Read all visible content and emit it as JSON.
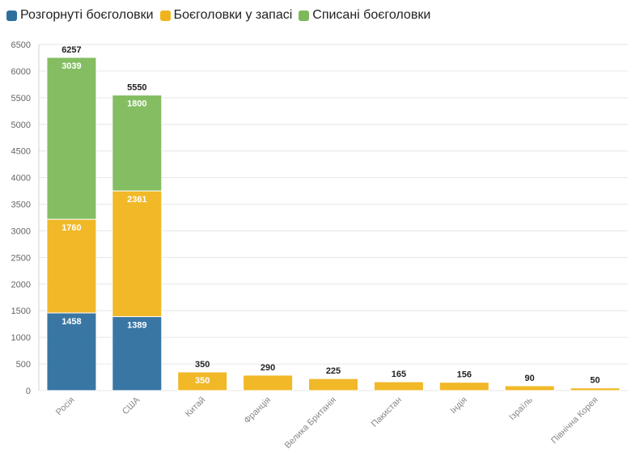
{
  "chart_data": {
    "type": "bar",
    "stacked": true,
    "categories": [
      "Росія",
      "США",
      "Китай",
      "Франція",
      "Велика Британія",
      "Пакистан",
      "Індія",
      "Ізраїль",
      "Північна Корея"
    ],
    "series": [
      {
        "name": "Розгорнуті боєголовки",
        "color": "#2E6F9E",
        "values": [
          1458,
          1389,
          0,
          0,
          0,
          0,
          0,
          0,
          0
        ]
      },
      {
        "name": "Боєголовки у запасі",
        "color": "#F0B41C",
        "values": [
          1760,
          2361,
          350,
          290,
          225,
          165,
          156,
          90,
          50
        ]
      },
      {
        "name": "Списані боєголовки",
        "color": "#7DB95A",
        "values": [
          3039,
          1800,
          0,
          0,
          0,
          0,
          0,
          0,
          0
        ]
      }
    ],
    "segment_labels": [
      [
        "1458",
        "1389",
        "",
        "",
        "",
        "",
        "",
        "",
        ""
      ],
      [
        "1760",
        "2361",
        "350",
        "",
        "",
        "",
        "",
        "",
        ""
      ],
      [
        "3039",
        "1800",
        "",
        "",
        "",
        "",
        "",
        "",
        ""
      ]
    ],
    "totals": [
      "6257",
      "5550",
      "350",
      "290",
      "225",
      "165",
      "156",
      "90",
      "50"
    ],
    "yticks": [
      "0",
      "500",
      "1000",
      "1500",
      "2000",
      "2500",
      "3000",
      "3500",
      "4000",
      "4500",
      "5000",
      "5500",
      "6000",
      "6500"
    ],
    "ylim": [
      0,
      6500
    ],
    "legend_position": "top-left",
    "grid": true,
    "title": "",
    "xlabel": "",
    "ylabel": ""
  }
}
